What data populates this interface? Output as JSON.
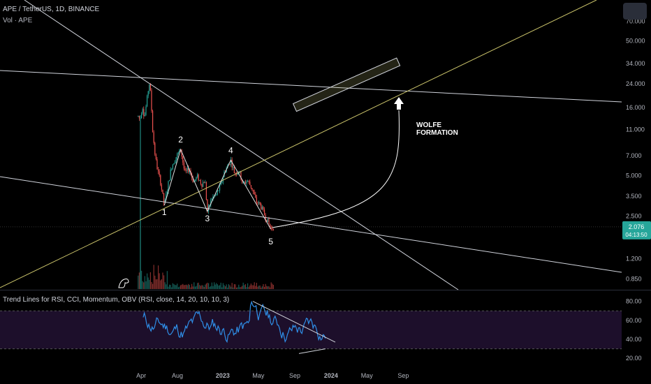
{
  "header": {
    "symbol": "APE / TetherUS, 1D, BINANCE",
    "volume_label": "Vol · APE"
  },
  "indicator": {
    "label": "Trend Lines for RSI, CCI, Momentum, OBV (RSI, close, 14, 20, 10, 10, 3)"
  },
  "price_badge": {
    "price": "2.076",
    "countdown": "04:13:50",
    "color": "#26a69a"
  },
  "annotation": {
    "line1": "WOLFE",
    "line2": "FORMATION"
  },
  "wave_labels": [
    "1",
    "2",
    "3",
    "4",
    "5"
  ],
  "colors": {
    "background": "#000000",
    "trendline": "#d1d4dc",
    "target_line": "#c9c26a",
    "candle_up": "#26a69a",
    "candle_down": "#ef5350",
    "rsi_line": "#2f8fe8",
    "rsi_band": "#1d0f2b"
  },
  "chart_data": {
    "type": "candlestick",
    "symbol": "APE / TetherUS",
    "interval": "1D",
    "exchange": "BINANCE",
    "y_scale": "log",
    "ylim": [
      0.75,
      95
    ],
    "y_ticks": [
      70,
      50,
      34,
      24,
      16,
      11,
      7,
      5,
      3.5,
      2.5,
      1.2,
      0.85
    ],
    "y_tick_labels": [
      "70.000",
      "50.000",
      "34.000",
      "24.000",
      "16.000",
      "11.000",
      "7.000",
      "5.000",
      "3.500",
      "2.500",
      "1.200",
      "0.850"
    ],
    "x_tick_labels": [
      "Apr",
      "Aug",
      "2023",
      "May",
      "Sep",
      "2024",
      "May",
      "Sep"
    ],
    "last_price": 2.076,
    "wolfe_points": [
      {
        "label": "1",
        "date": "2022-06-18",
        "price": 3.0
      },
      {
        "label": "2",
        "date": "2022-08-12",
        "price": 7.8
      },
      {
        "label": "3",
        "date": "2022-11-10",
        "price": 2.7
      },
      {
        "label": "4",
        "date": "2023-01-28",
        "price": 6.5
      },
      {
        "label": "5",
        "date": "2023-06-12",
        "price": 2.0
      }
    ],
    "price_path": [
      [
        "2022-03-17",
        6.0
      ],
      [
        "2022-03-20",
        14.0
      ],
      [
        "2022-03-28",
        13.0
      ],
      [
        "2022-04-05",
        16.5
      ],
      [
        "2022-04-12",
        13.5
      ],
      [
        "2022-04-20",
        18.0
      ],
      [
        "2022-04-28",
        24.5
      ],
      [
        "2022-05-03",
        20.0
      ],
      [
        "2022-05-10",
        10.5
      ],
      [
        "2022-05-18",
        7.0
      ],
      [
        "2022-05-26",
        5.5
      ],
      [
        "2022-06-04",
        4.6
      ],
      [
        "2022-06-18",
        3.0
      ],
      [
        "2022-06-30",
        4.2
      ],
      [
        "2022-07-12",
        5.8
      ],
      [
        "2022-07-26",
        6.8
      ],
      [
        "2022-08-12",
        7.8
      ],
      [
        "2022-08-26",
        5.2
      ],
      [
        "2022-09-10",
        5.6
      ],
      [
        "2022-09-24",
        4.5
      ],
      [
        "2022-10-08",
        4.9
      ],
      [
        "2022-10-22",
        4.3
      ],
      [
        "2022-11-02",
        4.6
      ],
      [
        "2022-11-10",
        2.7
      ],
      [
        "2022-11-25",
        3.4
      ],
      [
        "2022-12-10",
        3.6
      ],
      [
        "2022-12-25",
        4.2
      ],
      [
        "2023-01-06",
        5.3
      ],
      [
        "2023-01-20",
        6.0
      ],
      [
        "2023-01-28",
        6.5
      ],
      [
        "2023-02-10",
        5.2
      ],
      [
        "2023-02-25",
        5.4
      ],
      [
        "2023-03-10",
        4.3
      ],
      [
        "2023-03-25",
        4.6
      ],
      [
        "2023-04-10",
        4.0
      ],
      [
        "2023-04-24",
        3.2
      ],
      [
        "2023-05-08",
        3.0
      ],
      [
        "2023-05-20",
        2.6
      ],
      [
        "2023-06-01",
        2.3
      ],
      [
        "2023-06-12",
        2.0
      ],
      [
        "2023-06-24",
        2.1
      ]
    ],
    "target_box": {
      "start": {
        "date": "2023-09-01",
        "price": 16.0
      },
      "end": {
        "date": "2024-08-15",
        "price": 35.0
      }
    },
    "rsi_panel": {
      "ylim": [
        15,
        90
      ],
      "y_ticks": [
        80,
        60,
        40,
        20
      ],
      "y_tick_labels": [
        "80.00",
        "60.00",
        "40.00",
        "20.00"
      ],
      "band": [
        30,
        70
      ]
    }
  }
}
